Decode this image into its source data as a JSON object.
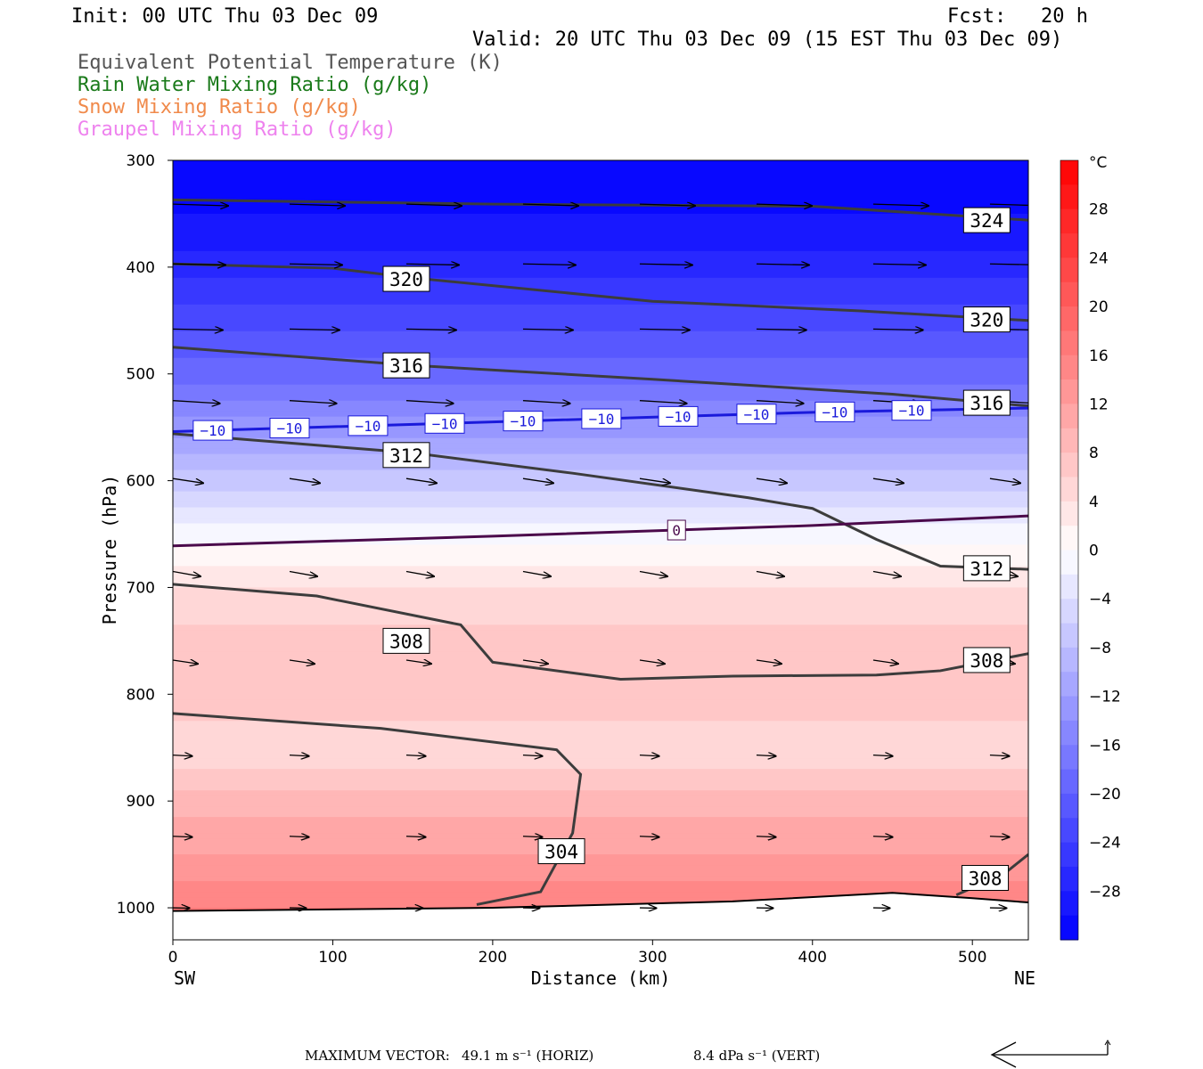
{
  "header": {
    "init": "Init: 00 UTC Thu 03 Dec 09",
    "fcst_label": "Fcst:",
    "fcst_value": "20 h",
    "valid": "Valid: 20 UTC Thu 03 Dec 09 (15 EST Thu 03 Dec 09)"
  },
  "legend": [
    {
      "label": "Equivalent Potential Temperature (K)",
      "color": "#555555"
    },
    {
      "label": "Rain Water Mixing Ratio (g/kg)",
      "color": "#1a7a1a"
    },
    {
      "label": "Snow Mixing Ratio (g/kg)",
      "color": "#f08a4b"
    },
    {
      "label": "Graupel Mixing Ratio (g/kg)",
      "color": "#ee82ee"
    }
  ],
  "footer": {
    "max_vector_label": "MAXIMUM VECTOR:",
    "horiz": "49.1 m s⁻¹ (HORIZ)",
    "vert": "8.4 dPa s⁻¹ (VERT)"
  },
  "chart_data": {
    "type": "cross-section",
    "xlabel": "Distance (km)",
    "ylabel": "Pressure (hPa)",
    "xlim": [
      0,
      535
    ],
    "ylim": [
      1030,
      300
    ],
    "xticks": [
      0,
      100,
      200,
      300,
      400,
      500
    ],
    "yticks": [
      300,
      400,
      500,
      600,
      700,
      800,
      900,
      1000
    ],
    "x_end_labels": {
      "left": "SW",
      "right": "NE"
    },
    "colorbar": {
      "unit": "°C",
      "ticks": [
        28,
        24,
        20,
        16,
        12,
        8,
        4,
        0,
        -4,
        -8,
        -12,
        -16,
        -20,
        -24,
        -28
      ],
      "tick_labels": [
        "28",
        "24",
        "20",
        "16",
        "12",
        "8",
        "4",
        "0",
        "−4",
        "−8",
        "−12",
        "−16",
        "−20",
        "−24",
        "−28"
      ],
      "min": -32,
      "max": 32,
      "step": 2,
      "cold_color": "#0000ff",
      "warm_color": "#ff0000",
      "neutral_color": "#ffffff"
    },
    "temperature_field": {
      "levels": [
        300,
        350,
        400,
        450,
        500,
        550,
        600,
        650,
        700,
        750,
        800,
        850,
        900,
        950,
        1000
      ],
      "values": [
        -32,
        -30,
        -27,
        -23,
        -19,
        -13,
        -7,
        -1,
        4,
        7,
        8,
        4,
        9,
        12,
        16
      ]
    },
    "theta_e_contours": [
      {
        "label": "324",
        "points": [
          [
            0,
            337
          ],
          [
            200,
            341
          ],
          [
            400,
            343
          ],
          [
            535,
            356
          ]
        ]
      },
      {
        "label": "320",
        "points": [
          [
            0,
            397
          ],
          [
            100,
            401
          ],
          [
            150,
            410
          ],
          [
            300,
            432
          ],
          [
            430,
            441
          ],
          [
            535,
            450
          ]
        ]
      },
      {
        "label": "316",
        "points": [
          [
            0,
            475
          ],
          [
            150,
            492
          ],
          [
            300,
            505
          ],
          [
            450,
            519
          ],
          [
            535,
            530
          ]
        ]
      },
      {
        "label": "312",
        "points": [
          [
            0,
            556
          ],
          [
            150,
            574
          ],
          [
            250,
            593
          ],
          [
            360,
            616
          ],
          [
            400,
            626
          ],
          [
            440,
            655
          ],
          [
            480,
            680
          ],
          [
            535,
            683
          ]
        ]
      },
      {
        "label": "308",
        "points": [
          [
            0,
            697
          ],
          [
            90,
            708
          ],
          [
            180,
            735
          ],
          [
            200,
            770
          ],
          [
            280,
            786
          ],
          [
            350,
            783
          ],
          [
            440,
            782
          ],
          [
            480,
            778
          ],
          [
            535,
            762
          ]
        ]
      },
      {
        "label": "304",
        "points": [
          [
            0,
            818
          ],
          [
            130,
            832
          ],
          [
            240,
            852
          ],
          [
            255,
            875
          ],
          [
            250,
            930
          ],
          [
            230,
            985
          ],
          [
            190,
            997
          ]
        ]
      },
      {
        "label": "308",
        "points": [
          [
            490,
            988
          ],
          [
            520,
            968
          ],
          [
            535,
            950
          ]
        ]
      }
    ],
    "contour_label_positions": [
      {
        "label": "324",
        "x": 509,
        "p": 356
      },
      {
        "label": "320",
        "x": 146,
        "p": 411
      },
      {
        "label": "320",
        "x": 509,
        "p": 449
      },
      {
        "label": "316",
        "x": 146,
        "p": 492
      },
      {
        "label": "316",
        "x": 509,
        "p": 527
      },
      {
        "label": "312",
        "x": 146,
        "p": 576
      },
      {
        "label": "312",
        "x": 509,
        "p": 682
      },
      {
        "label": "308",
        "x": 146,
        "p": 750
      },
      {
        "label": "308",
        "x": 509,
        "p": 768
      },
      {
        "label": "304",
        "x": 243,
        "p": 947
      },
      {
        "label": "308",
        "x": 508,
        "p": 972
      }
    ],
    "isotherms": [
      {
        "label": "−10",
        "value": -10,
        "color": "#1a1adb",
        "points": [
          [
            0,
            554
          ],
          [
            200,
            545
          ],
          [
            400,
            536
          ],
          [
            535,
            532
          ]
        ],
        "label_x": [
          25,
          73,
          122,
          170,
          219,
          268,
          316,
          365,
          414,
          462
        ]
      },
      {
        "label": "0",
        "value": 0,
        "color": "#4b0a4b",
        "points": [
          [
            0,
            661
          ],
          [
            200,
            652
          ],
          [
            400,
            642
          ],
          [
            535,
            633
          ]
        ],
        "label_x": [
          315
        ]
      }
    ],
    "wind_rows": [
      {
        "p": 300,
        "x": [
          0,
          535
        ],
        "u": 0,
        "w": 0
      },
      {
        "p": 341,
        "x": [
          0,
          73,
          146,
          219,
          292,
          365,
          438,
          511
        ],
        "u": 1.0,
        "w": 0.03
      },
      {
        "p": 397,
        "x": [
          0,
          73,
          146,
          219,
          292,
          365,
          438,
          511
        ],
        "u": 0.95,
        "w": 0.02
      },
      {
        "p": 458,
        "x": [
          0,
          73,
          146,
          219,
          292,
          365,
          438,
          511
        ],
        "u": 0.9,
        "w": 0.02
      },
      {
        "p": 525,
        "x": [
          0,
          73,
          146,
          219,
          292,
          365,
          438,
          511
        ],
        "u": 0.85,
        "w": 0.06
      },
      {
        "p": 598,
        "x": [
          0,
          73,
          146,
          219,
          292,
          365,
          438,
          511
        ],
        "u": 0.55,
        "w": 0.15
      },
      {
        "p": 685,
        "x": [
          0,
          73,
          146,
          219,
          292,
          365,
          438,
          511
        ],
        "u": 0.5,
        "w": 0.18
      },
      {
        "p": 768,
        "x": [
          0,
          73,
          146,
          219,
          292,
          365,
          438,
          511
        ],
        "u": 0.45,
        "w": 0.15
      },
      {
        "p": 857,
        "x": [
          0,
          73,
          146,
          219,
          292,
          365,
          438,
          511
        ],
        "u": 0.35,
        "w": 0.05
      },
      {
        "p": 933,
        "x": [
          0,
          73,
          146,
          219,
          292,
          365,
          438,
          511
        ],
        "u": 0.35,
        "w": 0.04
      },
      {
        "p": 1000,
        "x": [
          0,
          73,
          146,
          219,
          292,
          365,
          438,
          511
        ],
        "u": 0.3,
        "w": 0.02
      }
    ],
    "surface_line": [
      [
        0,
        1003
      ],
      [
        200,
        1000
      ],
      [
        350,
        994
      ],
      [
        450,
        986
      ],
      [
        500,
        991
      ],
      [
        535,
        995
      ]
    ]
  }
}
